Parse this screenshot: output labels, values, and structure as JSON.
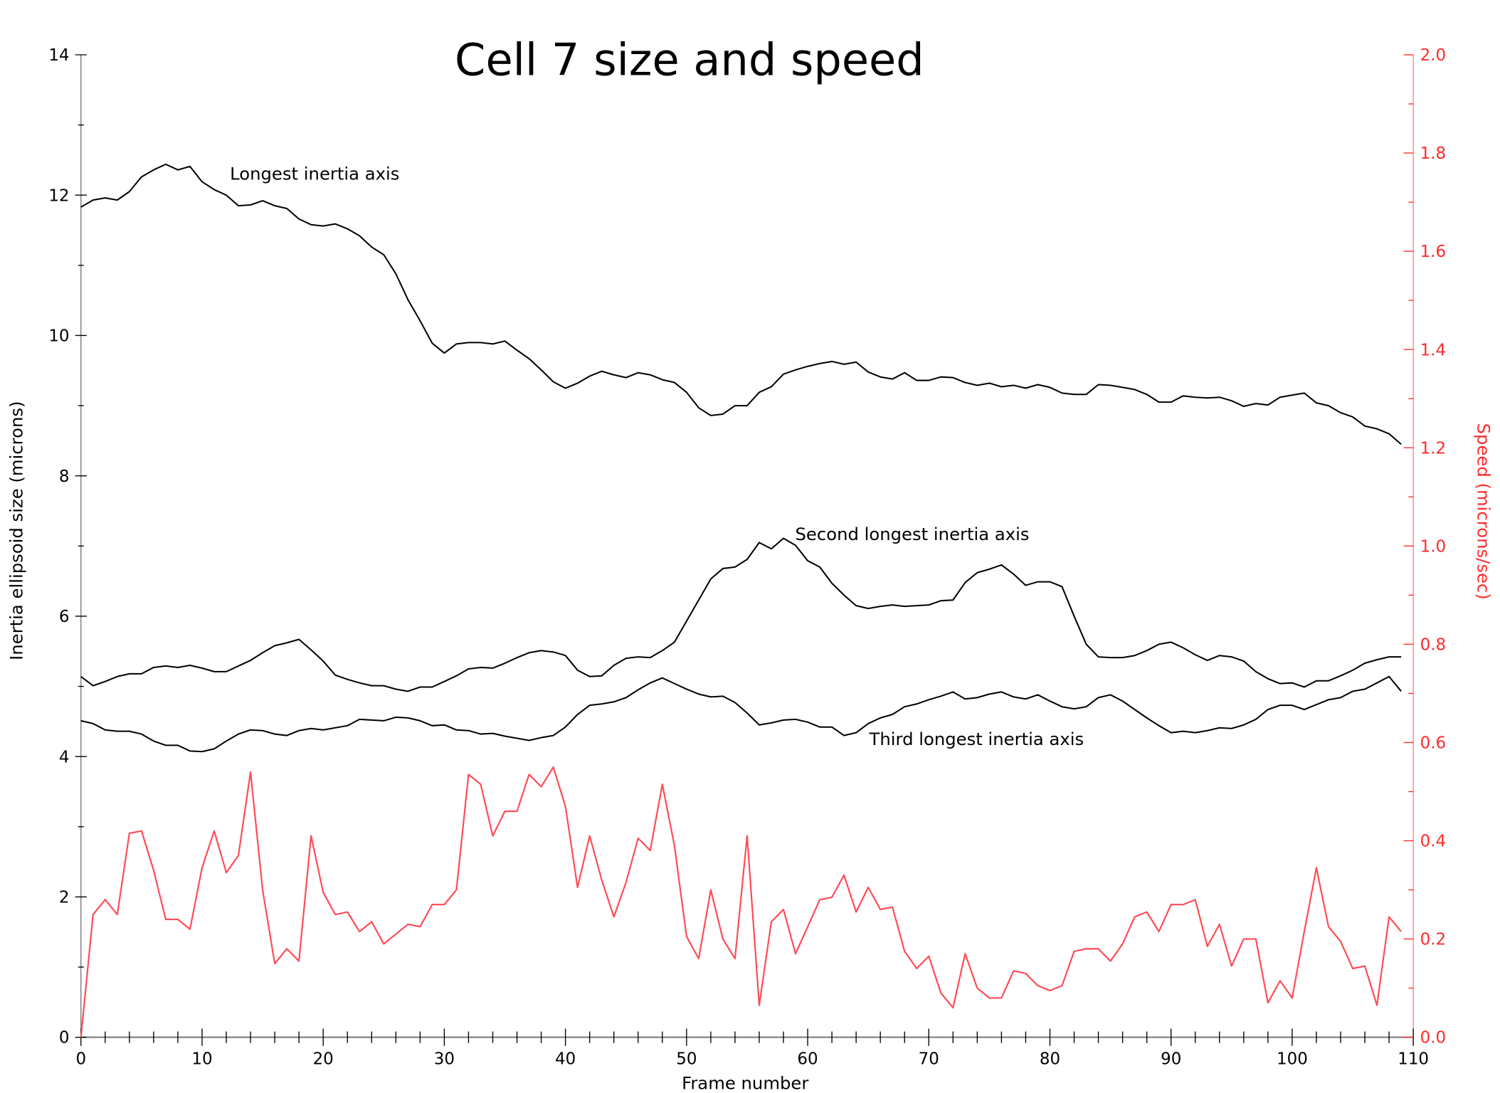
{
  "chart_data": {
    "type": "line",
    "title": "Cell 7 size and speed",
    "xlabel": "Frame number",
    "ylabel": "Inertia ellipsoid size (microns)",
    "y2label": "Speed (microns/sec)",
    "xlim": [
      0,
      110
    ],
    "ylim": [
      0,
      14
    ],
    "y2lim": [
      0,
      2.0
    ],
    "x_ticks": [
      "0",
      "10",
      "20",
      "30",
      "40",
      "50",
      "60",
      "70",
      "80",
      "90",
      "100",
      "110"
    ],
    "y_ticks": [
      "0",
      "2",
      "4",
      "6",
      "8",
      "10",
      "12",
      "14"
    ],
    "y2_ticks": [
      "0.0",
      "0.2",
      "0.4",
      "0.6",
      "0.8",
      "1.0",
      "1.2",
      "1.4",
      "1.6",
      "1.8",
      "2.0"
    ],
    "grid": false,
    "colors": {
      "size_series": "#000000",
      "speed_series": "#ff4a55",
      "right_axis": "#ff2a2a"
    },
    "annotations": [
      "Longest inertia axis",
      "Second longest inertia axis",
      "Third longest inertia axis"
    ],
    "series": [
      {
        "name": "Longest inertia axis",
        "axis": "left",
        "values": [
          11.83,
          11.93,
          11.96,
          11.93,
          12.05,
          12.26,
          12.36,
          12.44,
          12.36,
          12.41,
          12.19,
          12.08,
          12.0,
          11.85,
          11.86,
          11.92,
          11.85,
          11.81,
          11.66,
          11.58,
          11.56,
          11.59,
          11.52,
          11.42,
          11.26,
          11.15,
          10.88,
          10.51,
          10.21,
          9.89,
          9.75,
          9.88,
          9.9,
          9.9,
          9.88,
          9.92,
          9.79,
          9.67,
          9.51,
          9.34,
          9.25,
          9.32,
          9.42,
          9.49,
          9.44,
          9.4,
          9.47,
          9.44,
          9.37,
          9.33,
          9.19,
          8.97,
          8.86,
          8.88,
          9.0,
          9.0,
          9.19,
          9.27,
          9.45,
          9.51,
          9.56,
          9.6,
          9.63,
          9.59,
          9.62,
          9.48,
          9.41,
          9.38,
          9.47,
          9.36,
          9.36,
          9.41,
          9.4,
          9.33,
          9.29,
          9.32,
          9.27,
          9.29,
          9.25,
          9.3,
          9.26,
          9.18,
          9.16,
          9.16,
          9.3,
          9.29,
          9.26,
          9.23,
          9.16,
          9.05,
          9.05,
          9.14,
          9.12,
          9.11,
          9.12,
          9.07,
          8.99,
          9.03,
          9.01,
          9.12,
          9.15,
          9.18,
          9.04,
          9.0,
          8.9,
          8.84,
          8.71,
          8.67,
          8.6,
          8.45
        ]
      },
      {
        "name": "Second longest inertia axis",
        "axis": "left",
        "values": [
          5.14,
          5.01,
          5.07,
          5.14,
          5.18,
          5.18,
          5.27,
          5.29,
          5.27,
          5.3,
          5.26,
          5.21,
          5.21,
          5.29,
          5.37,
          5.48,
          5.58,
          5.62,
          5.67,
          5.52,
          5.36,
          5.16,
          5.1,
          5.05,
          5.01,
          5.01,
          4.96,
          4.93,
          4.99,
          4.99,
          5.07,
          5.15,
          5.25,
          5.27,
          5.26,
          5.33,
          5.41,
          5.48,
          5.51,
          5.49,
          5.44,
          5.23,
          5.14,
          5.15,
          5.3,
          5.4,
          5.42,
          5.41,
          5.51,
          5.63,
          5.93,
          6.23,
          6.53,
          6.68,
          6.7,
          6.81,
          7.05,
          6.96,
          7.11,
          7.01,
          6.79,
          6.7,
          6.47,
          6.3,
          6.15,
          6.11,
          6.14,
          6.16,
          6.14,
          6.15,
          6.16,
          6.22,
          6.23,
          6.48,
          6.62,
          6.67,
          6.73,
          6.6,
          6.44,
          6.49,
          6.49,
          6.42,
          6.0,
          5.6,
          5.42,
          5.41,
          5.41,
          5.44,
          5.51,
          5.6,
          5.63,
          5.55,
          5.45,
          5.37,
          5.44,
          5.42,
          5.36,
          5.21,
          5.11,
          5.04,
          5.05,
          4.99,
          5.08,
          5.08,
          5.15,
          5.23,
          5.33,
          5.38,
          5.42,
          5.42
        ]
      },
      {
        "name": "Third longest inertia axis",
        "axis": "left",
        "values": [
          4.51,
          4.47,
          4.38,
          4.36,
          4.36,
          4.32,
          4.22,
          4.16,
          4.16,
          4.08,
          4.07,
          4.11,
          4.22,
          4.32,
          4.38,
          4.37,
          4.32,
          4.3,
          4.37,
          4.4,
          4.38,
          4.41,
          4.44,
          4.53,
          4.52,
          4.51,
          4.56,
          4.55,
          4.51,
          4.44,
          4.45,
          4.38,
          4.37,
          4.32,
          4.33,
          4.29,
          4.26,
          4.23,
          4.27,
          4.3,
          4.42,
          4.6,
          4.73,
          4.75,
          4.78,
          4.84,
          4.95,
          5.05,
          5.12,
          5.04,
          4.96,
          4.89,
          4.85,
          4.86,
          4.77,
          4.62,
          4.45,
          4.48,
          4.52,
          4.53,
          4.49,
          4.42,
          4.42,
          4.3,
          4.34,
          4.47,
          4.55,
          4.6,
          4.71,
          4.75,
          4.81,
          4.86,
          4.92,
          4.82,
          4.84,
          4.89,
          4.92,
          4.85,
          4.82,
          4.88,
          4.79,
          4.71,
          4.68,
          4.71,
          4.84,
          4.88,
          4.79,
          4.67,
          4.55,
          4.44,
          4.34,
          4.36,
          4.34,
          4.37,
          4.41,
          4.4,
          4.45,
          4.53,
          4.67,
          4.73,
          4.73,
          4.67,
          4.74,
          4.81,
          4.84,
          4.93,
          4.96,
          5.05,
          5.14,
          4.93
        ]
      },
      {
        "name": "Speed (microns/sec)",
        "axis": "right",
        "values": [
          0.0,
          0.25,
          0.28,
          0.25,
          0.415,
          0.42,
          0.34,
          0.24,
          0.24,
          0.22,
          0.345,
          0.42,
          0.335,
          0.37,
          0.54,
          0.3,
          0.15,
          0.18,
          0.155,
          0.41,
          0.295,
          0.25,
          0.255,
          0.215,
          0.235,
          0.19,
          0.21,
          0.23,
          0.225,
          0.27,
          0.27,
          0.3,
          0.535,
          0.515,
          0.41,
          0.46,
          0.46,
          0.535,
          0.51,
          0.55,
          0.47,
          0.305,
          0.41,
          0.32,
          0.245,
          0.315,
          0.405,
          0.38,
          0.515,
          0.39,
          0.205,
          0.16,
          0.3,
          0.2,
          0.16,
          0.41,
          0.065,
          0.235,
          0.26,
          0.17,
          0.225,
          0.28,
          0.285,
          0.33,
          0.255,
          0.305,
          0.26,
          0.265,
          0.175,
          0.14,
          0.165,
          0.09,
          0.06,
          0.17,
          0.1,
          0.08,
          0.08,
          0.135,
          0.13,
          0.105,
          0.095,
          0.105,
          0.175,
          0.18,
          0.18,
          0.155,
          0.19,
          0.245,
          0.255,
          0.215,
          0.27,
          0.27,
          0.28,
          0.185,
          0.23,
          0.145,
          0.2,
          0.2,
          0.07,
          0.115,
          0.08,
          0.215,
          0.345,
          0.225,
          0.195,
          0.14,
          0.145,
          0.065,
          0.245,
          0.215
        ]
      }
    ]
  }
}
